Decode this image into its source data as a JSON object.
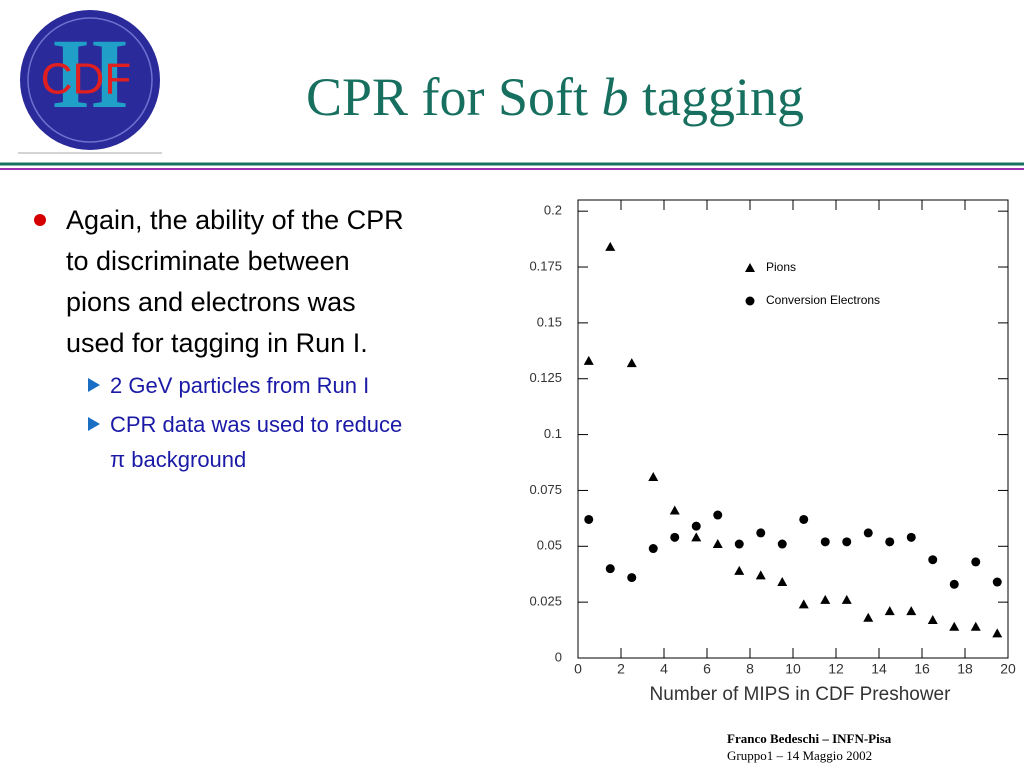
{
  "logo": {
    "numeral": "II",
    "text": "CDF"
  },
  "title": {
    "before": "CPR for Soft",
    "italic": "b",
    "after": "tagging"
  },
  "bullets": {
    "main_lines": [
      "Again, the ability of the CPR",
      "to discriminate between",
      "pions and electrons was",
      "used for tagging in Run I."
    ],
    "sub": [
      [
        "2 GeV particles from Run I"
      ],
      [
        "CPR data was used to reduce",
        "π background"
      ]
    ]
  },
  "footer": {
    "author": "Franco Bedeschi – INFN-Pisa",
    "event": "Gruppo1 – 14 Maggio 2002"
  },
  "chart_data": {
    "type": "scatter",
    "xlabel": "Number of MIPS in CDF Preshower",
    "xlim": [
      0,
      20
    ],
    "ylim": [
      0,
      0.205
    ],
    "xticks": [
      0,
      2,
      4,
      6,
      8,
      10,
      12,
      14,
      16,
      18,
      20
    ],
    "yticks": [
      0,
      0.025,
      0.05,
      0.075,
      0.1,
      0.125,
      0.15,
      0.175,
      0.2
    ],
    "legend": "upper right",
    "x": [
      0.5,
      1.5,
      2.5,
      3.5,
      4.5,
      5.5,
      6.5,
      7.5,
      8.5,
      9.5,
      10.5,
      11.5,
      12.5,
      13.5,
      14.5,
      15.5,
      16.5,
      17.5,
      18.5,
      19.5
    ],
    "series": [
      {
        "name": "Pions",
        "marker": "triangle",
        "color": "#000000",
        "values": [
          0.133,
          0.184,
          0.132,
          0.081,
          0.066,
          0.054,
          0.051,
          0.039,
          0.037,
          0.034,
          0.024,
          0.026,
          0.026,
          0.018,
          0.021,
          0.021,
          0.017,
          0.014,
          0.014,
          0.011
        ]
      },
      {
        "name": "Conversion Electrons",
        "marker": "circle",
        "color": "#000000",
        "values": [
          0.062,
          0.04,
          0.036,
          0.049,
          0.054,
          0.059,
          0.064,
          0.051,
          0.056,
          0.051,
          0.062,
          0.052,
          0.052,
          0.056,
          0.052,
          0.054,
          0.044,
          0.033,
          0.043,
          0.034
        ]
      }
    ]
  }
}
